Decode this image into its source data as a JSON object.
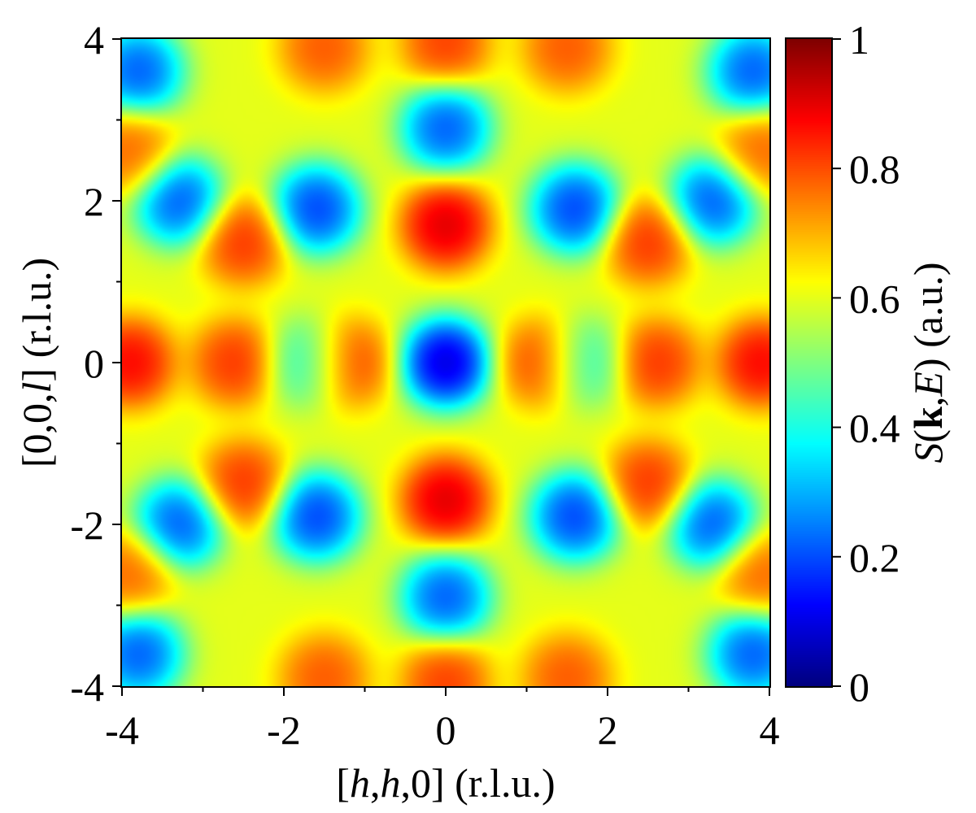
{
  "chart_data": {
    "type": "heatmap",
    "title": "",
    "xlabel": {
      "open": "[",
      "v1": "h",
      "s1": ",",
      "v2": "h",
      "s2": ",0] (r.l.u.)"
    },
    "ylabel": {
      "open": "[0,0,",
      "v1": "l",
      "s1": "] (r.l.u.)"
    },
    "colorbar_label": {
      "v1": "S",
      "s1": "(",
      "b1": "k",
      "s2": ",",
      "v2": "E",
      "s3": ") (a.u.)"
    },
    "xlim": [
      -4,
      4
    ],
    "ylim": [
      -4,
      4
    ],
    "zlim": [
      0,
      1
    ],
    "xticks": [
      -4,
      -2,
      0,
      2,
      4
    ],
    "xtick_labels": [
      "-4",
      "-2",
      "0",
      "2",
      "4"
    ],
    "yticks": [
      4,
      2,
      0,
      -2,
      -4
    ],
    "ytick_labels": [
      "4",
      "2",
      "0",
      "-2",
      "-4"
    ],
    "minor_ticks": [
      -3,
      -1,
      1,
      3
    ],
    "colorbar_ticks": [
      1,
      0.8,
      0.6,
      0.4,
      0.2,
      0
    ],
    "colorbar_tick_labels": [
      "1",
      "0.8",
      "0.6",
      "0.4",
      "0.2",
      "0"
    ],
    "colormap": "jet",
    "symmetry": "mirror in h and l",
    "grid": false,
    "background_level": 0.6,
    "features": [
      {
        "name": "center-minimum",
        "h": 0,
        "l": 0,
        "value": 0.0
      },
      {
        "name": "upper-arc-maximum",
        "h": 0,
        "l": 1.7,
        "value": 0.96
      },
      {
        "name": "lower-arc-maximum",
        "h": 0,
        "l": -1.7,
        "value": 0.96
      },
      {
        "name": "minimum",
        "h": 0,
        "l": 2.9,
        "value": 0.15
      },
      {
        "name": "minimum",
        "h": 0,
        "l": -2.9,
        "value": 0.15
      },
      {
        "name": "maximum",
        "h": 1.2,
        "l": 0,
        "value": 0.85
      },
      {
        "name": "maximum",
        "h": -1.2,
        "l": 0,
        "value": 0.85
      },
      {
        "name": "minimum",
        "h": 1.7,
        "l": 0,
        "value": 0.38
      },
      {
        "name": "minimum",
        "h": -1.7,
        "l": 0,
        "value": 0.38
      },
      {
        "name": "maximum",
        "h": 2.6,
        "l": 0,
        "value": 0.86
      },
      {
        "name": "maximum",
        "h": -2.6,
        "l": 0,
        "value": 0.86
      },
      {
        "name": "maximum",
        "h": 3.9,
        "l": 0,
        "value": 0.92
      },
      {
        "name": "maximum",
        "h": -3.9,
        "l": 0,
        "value": 0.92
      },
      {
        "name": "diagonal-minimum",
        "h": 1.6,
        "l": 1.9,
        "value": 0.12
      },
      {
        "name": "diagonal-minimum",
        "h": -1.6,
        "l": 1.9,
        "value": 0.12
      },
      {
        "name": "diagonal-minimum",
        "h": 1.6,
        "l": -1.9,
        "value": 0.12
      },
      {
        "name": "diagonal-minimum",
        "h": -1.6,
        "l": -1.9,
        "value": 0.12
      },
      {
        "name": "spot-maximum",
        "h": 2.5,
        "l": 1.5,
        "value": 0.86
      },
      {
        "name": "spot-maximum",
        "h": -2.5,
        "l": 1.5,
        "value": 0.86
      },
      {
        "name": "spot-maximum",
        "h": 2.5,
        "l": -1.5,
        "value": 0.86
      },
      {
        "name": "spot-maximum",
        "h": -2.5,
        "l": -1.5,
        "value": 0.86
      },
      {
        "name": "minimum",
        "h": 3.3,
        "l": 2.0,
        "value": 0.15
      },
      {
        "name": "minimum",
        "h": -3.3,
        "l": 2.0,
        "value": 0.15
      },
      {
        "name": "minimum",
        "h": 3.3,
        "l": -2.0,
        "value": 0.15
      },
      {
        "name": "minimum",
        "h": -3.3,
        "l": -2.0,
        "value": 0.15
      },
      {
        "name": "corner-minimum",
        "h": 3.8,
        "l": 3.6,
        "value": 0.15
      },
      {
        "name": "corner-minimum",
        "h": -3.8,
        "l": 3.6,
        "value": 0.15
      },
      {
        "name": "corner-minimum",
        "h": 3.8,
        "l": -3.6,
        "value": 0.15
      },
      {
        "name": "corner-minimum",
        "h": -3.8,
        "l": -3.6,
        "value": 0.15
      },
      {
        "name": "edge-maximum",
        "h": 1.5,
        "l": 3.9,
        "value": 0.82
      },
      {
        "name": "edge-maximum",
        "h": -1.5,
        "l": 3.9,
        "value": 0.82
      },
      {
        "name": "edge-maximum",
        "h": 1.5,
        "l": -3.9,
        "value": 0.82
      },
      {
        "name": "edge-maximum",
        "h": -1.5,
        "l": -3.9,
        "value": 0.82
      },
      {
        "name": "edge-maximum",
        "h": 0,
        "l": 3.95,
        "value": 0.85
      },
      {
        "name": "edge-maximum",
        "h": 0,
        "l": -3.95,
        "value": 0.85
      },
      {
        "name": "edge-maximum",
        "h": 3.9,
        "l": 2.6,
        "value": 0.8
      },
      {
        "name": "edge-maximum",
        "h": -3.9,
        "l": 2.6,
        "value": 0.8
      },
      {
        "name": "edge-maximum",
        "h": 3.9,
        "l": -2.6,
        "value": 0.8
      },
      {
        "name": "edge-maximum",
        "h": -3.9,
        "l": -2.6,
        "value": 0.8
      }
    ]
  }
}
